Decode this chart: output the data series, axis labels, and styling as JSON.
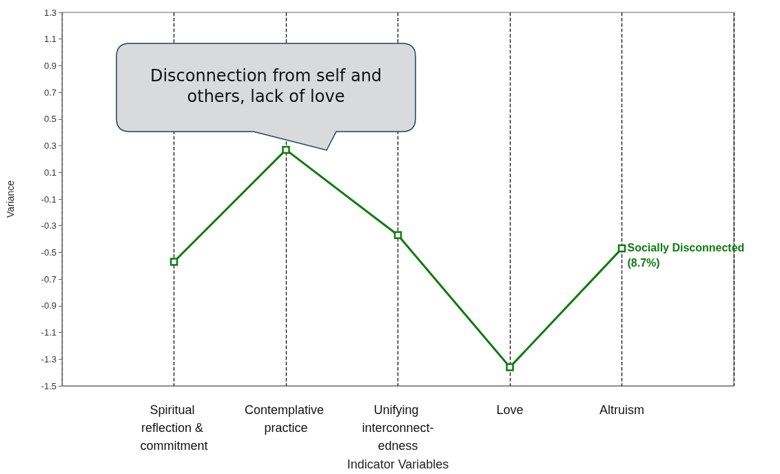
{
  "chart_data": {
    "type": "line",
    "xlabel": "Indicator Variables",
    "ylabel": "Variance",
    "categories": [
      "Spiritual reflection & commitment",
      "Contemplative practice",
      "Unifying interconnect-edness",
      "Love",
      "Altruism"
    ],
    "series": [
      {
        "name": "Socially Disconnected (8.7%)",
        "color": "#0a7d0a",
        "values": [
          -0.57,
          0.27,
          -0.37,
          -1.36,
          -0.47
        ]
      }
    ],
    "ylim": [
      -1.5,
      1.3
    ],
    "yticks": [
      -1.5,
      -1.3,
      -1.1,
      -0.9,
      -0.7,
      -0.5,
      -0.3,
      -0.1,
      0.1,
      0.3,
      0.5,
      0.7,
      0.9,
      1.1,
      1.3
    ],
    "grid": "x",
    "marker": "square",
    "line_style": "solid",
    "legend": false,
    "annotations": [
      "Disconnection from self and others, lack of love"
    ]
  }
}
